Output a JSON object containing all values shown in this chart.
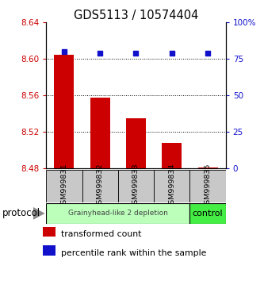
{
  "title": "GDS5113 / 10574404",
  "samples": [
    "GSM999831",
    "GSM999832",
    "GSM999833",
    "GSM999834",
    "GSM999835"
  ],
  "transformed_counts": [
    8.605,
    8.558,
    8.535,
    8.508,
    8.481
  ],
  "percentile_ranks": [
    80,
    79,
    79,
    79,
    79
  ],
  "ylim_left": [
    8.48,
    8.64
  ],
  "ylim_right": [
    0,
    100
  ],
  "yticks_left": [
    8.48,
    8.52,
    8.56,
    8.6,
    8.64
  ],
  "ytick_labels_left": [
    "8.48",
    "8.52",
    "8.56",
    "8.60",
    "8.64"
  ],
  "yticks_right": [
    0,
    25,
    50,
    75,
    100
  ],
  "ytick_labels_right": [
    "0",
    "25",
    "50",
    "75",
    "100%"
  ],
  "bar_color": "#cc0000",
  "dot_color": "#1111cc",
  "bar_bottom": 8.48,
  "group1_label": "Grainyhead-like 2 depletion",
  "group1_color": "#bbffbb",
  "group1_count": 4,
  "group2_label": "control",
  "group2_color": "#44ee44",
  "group2_count": 1,
  "protocol_label": "protocol",
  "legend_items": [
    {
      "color": "#cc0000",
      "label": "transformed count"
    },
    {
      "color": "#1111cc",
      "label": "percentile rank within the sample"
    }
  ],
  "tick_color_left": "#cc0000",
  "tick_color_right": "#1111cc",
  "bg_color_xtick": "#c8c8c8",
  "grid_color": "black"
}
